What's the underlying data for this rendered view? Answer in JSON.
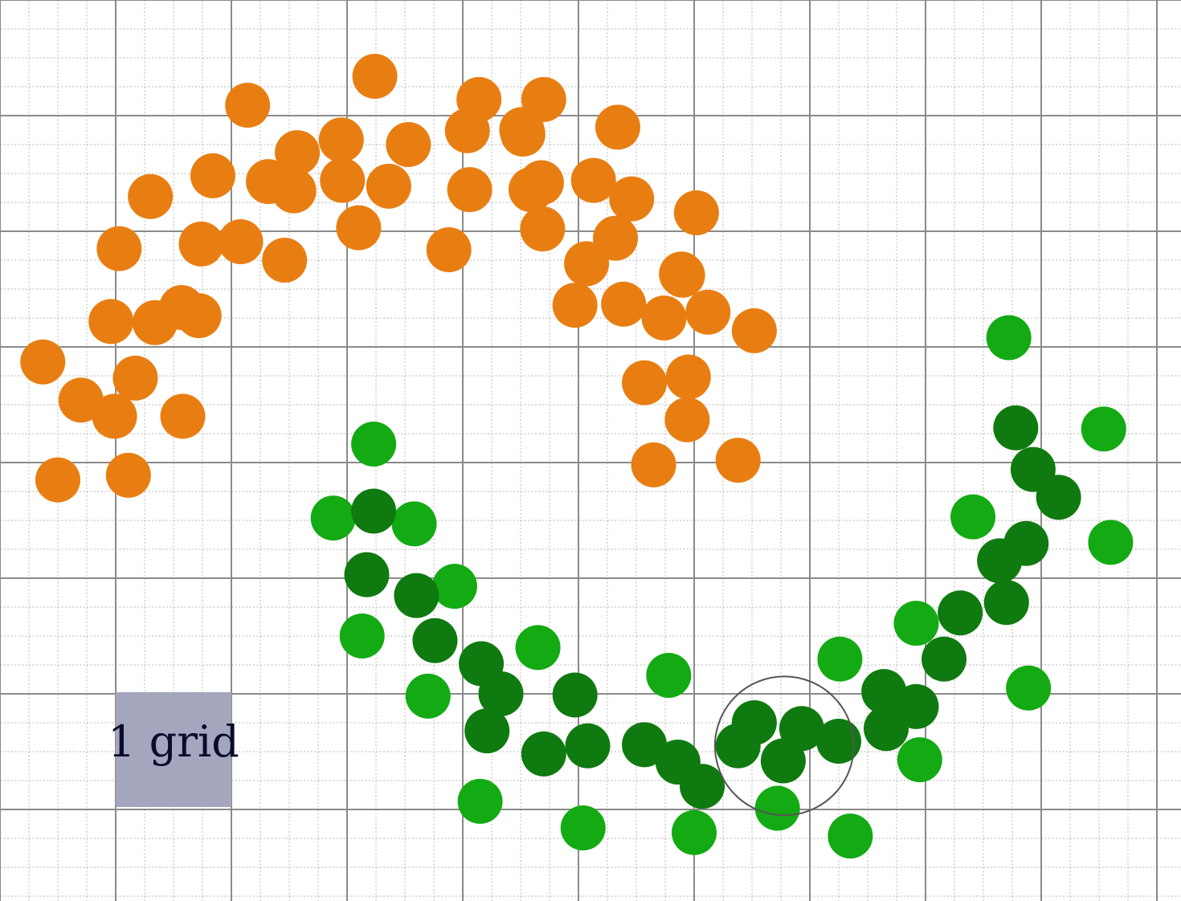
{
  "chart_data": {
    "type": "scatter",
    "xlim": [
      0,
      10.2
    ],
    "ylim": [
      -7.8,
      0
    ],
    "grid": true,
    "minor_grid_per_major": 4,
    "scale_legend": {
      "label": "1 grid",
      "color": "#a4a6bd",
      "text_color": "#0b0b2a"
    },
    "highlight_circle": {
      "x": 6.78,
      "y": -6.45,
      "r": 0.6,
      "color": "#555555"
    },
    "series": [
      {
        "color": "#e87e12",
        "points": [
          [
            3.24,
            -0.66
          ],
          [
            2.14,
            -0.91
          ],
          [
            4.14,
            -0.86
          ],
          [
            4.7,
            -0.86
          ],
          [
            5.34,
            -1.1
          ],
          [
            2.95,
            -1.21
          ],
          [
            2.57,
            -1.32
          ],
          [
            2.96,
            -1.56
          ],
          [
            3.53,
            -1.25
          ],
          [
            4.52,
            -1.16
          ],
          [
            4.04,
            -1.13
          ],
          [
            4.51,
            -1.12
          ],
          [
            1.84,
            -1.52
          ],
          [
            1.3,
            -1.7
          ],
          [
            2.32,
            -1.57
          ],
          [
            2.54,
            -1.65
          ],
          [
            3.36,
            -1.61
          ],
          [
            4.06,
            -1.64
          ],
          [
            4.59,
            -1.64
          ],
          [
            4.68,
            -1.58
          ],
          [
            5.13,
            -1.56
          ],
          [
            5.46,
            -1.72
          ],
          [
            6.02,
            -1.84
          ],
          [
            1.03,
            -2.15
          ],
          [
            1.74,
            -2.11
          ],
          [
            2.08,
            -2.09
          ],
          [
            2.46,
            -2.25
          ],
          [
            3.1,
            -1.97
          ],
          [
            3.88,
            -2.16
          ],
          [
            4.69,
            -1.98
          ],
          [
            5.32,
            -2.06
          ],
          [
            5.07,
            -2.28
          ],
          [
            0.96,
            -2.78
          ],
          [
            1.34,
            -2.79
          ],
          [
            1.57,
            -2.66
          ],
          [
            1.72,
            -2.73
          ],
          [
            4.97,
            -2.64
          ],
          [
            5.89,
            -2.37
          ],
          [
            5.9,
            -2.38
          ],
          [
            5.39,
            -2.63
          ],
          [
            5.74,
            -2.75
          ],
          [
            6.12,
            -2.7
          ],
          [
            6.52,
            -2.86
          ],
          [
            0.37,
            -3.13
          ],
          [
            0.7,
            -3.46
          ],
          [
            0.99,
            -3.6
          ],
          [
            1.58,
            -3.6
          ],
          [
            1.17,
            -3.27
          ],
          [
            5.57,
            -3.31
          ],
          [
            5.95,
            -3.26
          ],
          [
            5.94,
            -3.63
          ],
          [
            0.5,
            -4.15
          ],
          [
            1.11,
            -4.11
          ],
          [
            5.65,
            -4.02
          ],
          [
            6.38,
            -3.98
          ]
        ]
      },
      {
        "color": "#13aa13",
        "points": [
          [
            3.23,
            -3.84
          ],
          [
            2.88,
            -4.48
          ],
          [
            3.58,
            -4.53
          ],
          [
            3.93,
            -5.07
          ],
          [
            3.13,
            -5.5
          ],
          [
            3.7,
            -6.02
          ],
          [
            4.65,
            -5.6
          ],
          [
            5.78,
            -5.84
          ],
          [
            4.15,
            -6.93
          ],
          [
            5.04,
            -7.16
          ],
          [
            6.0,
            -7.2
          ],
          [
            6.72,
            -6.99
          ],
          [
            7.35,
            -7.23
          ],
          [
            7.26,
            -5.7
          ],
          [
            7.92,
            -5.39
          ],
          [
            7.95,
            -6.57
          ],
          [
            8.72,
            -2.92
          ],
          [
            8.41,
            -4.47
          ],
          [
            9.54,
            -3.71
          ],
          [
            9.6,
            -4.69
          ],
          [
            8.89,
            -5.95
          ]
        ]
      },
      {
        "color": "#0f7a0f",
        "points": [
          [
            3.23,
            -4.42
          ],
          [
            3.17,
            -4.97
          ],
          [
            3.6,
            -5.15
          ],
          [
            3.76,
            -5.54
          ],
          [
            4.16,
            -5.74
          ],
          [
            4.33,
            -6.0
          ],
          [
            4.21,
            -6.32
          ],
          [
            4.7,
            -6.52
          ],
          [
            4.97,
            -6.01
          ],
          [
            5.08,
            -6.45
          ],
          [
            5.57,
            -6.44
          ],
          [
            5.86,
            -6.59
          ],
          [
            6.07,
            -6.8
          ],
          [
            6.38,
            -6.45
          ],
          [
            6.52,
            -6.25
          ],
          [
            6.77,
            -6.58
          ],
          [
            6.93,
            -6.3
          ],
          [
            7.25,
            -6.41
          ],
          [
            7.66,
            -6.3
          ],
          [
            7.64,
            -5.98
          ],
          [
            7.92,
            -6.11
          ],
          [
            8.16,
            -5.7
          ],
          [
            8.3,
            -5.3
          ],
          [
            8.78,
            -3.7
          ],
          [
            8.93,
            -4.06
          ],
          [
            9.15,
            -4.3
          ],
          [
            8.87,
            -4.7
          ],
          [
            8.64,
            -4.85
          ],
          [
            8.7,
            -5.21
          ]
        ]
      }
    ]
  }
}
